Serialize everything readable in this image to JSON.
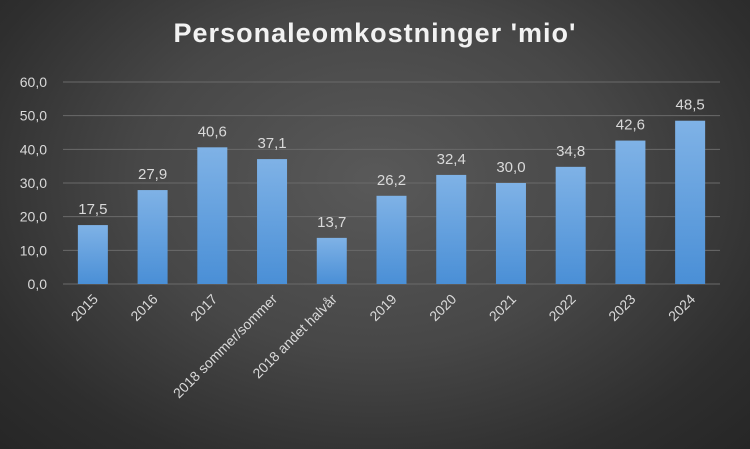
{
  "chart_data": {
    "type": "bar",
    "title": "Personaleomkostninger 'mio'",
    "xlabel": "",
    "ylabel": "",
    "categories": [
      "2015",
      "2016",
      "2017",
      "2018 sommer/sommer",
      "2018 andet halvår",
      "2019",
      "2020",
      "2021",
      "2022",
      "2023",
      "2024"
    ],
    "values": [
      17.5,
      27.9,
      40.6,
      37.1,
      13.7,
      26.2,
      32.4,
      30.0,
      34.8,
      42.6,
      48.5
    ],
    "value_labels": [
      "17,5",
      "27,9",
      "40,6",
      "37,1",
      "13,7",
      "26,2",
      "32,4",
      "30,0",
      "34,8",
      "42,6",
      "48,5"
    ],
    "yticks": [
      0,
      10,
      20,
      30,
      40,
      50,
      60
    ],
    "ytick_labels": [
      "0,0",
      "10,0",
      "20,0",
      "30,0",
      "40,0",
      "50,0",
      "60,0"
    ],
    "ylim": [
      0,
      60
    ],
    "grid": true,
    "legend": "none",
    "colors": {
      "bar_top": "#7fb2e6",
      "bar_bottom": "#4a8fd6",
      "grid": "#6a6a6a",
      "text": "#d9d9d9"
    }
  }
}
